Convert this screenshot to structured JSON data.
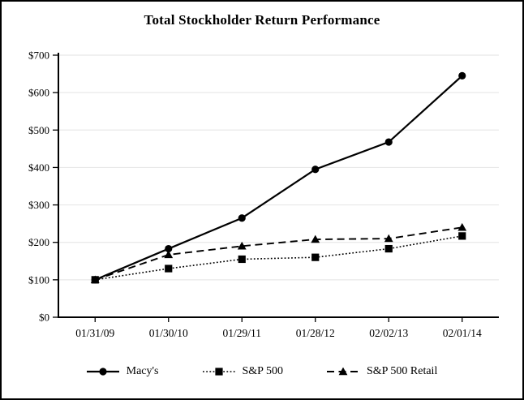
{
  "chart_data": {
    "type": "line",
    "title": "Total Stockholder Return Performance",
    "categories": [
      "01/31/09",
      "01/30/10",
      "01/29/11",
      "01/28/12",
      "02/02/13",
      "02/01/14"
    ],
    "series": [
      {
        "name": "Macy's",
        "marker": "circle",
        "line": "solid",
        "values": [
          100,
          183,
          265,
          395,
          468,
          645
        ]
      },
      {
        "name": "S&P 500",
        "marker": "square",
        "line": "dotted",
        "values": [
          100,
          130,
          155,
          160,
          183,
          217
        ]
      },
      {
        "name": "S&P 500 Retail",
        "marker": "triangle",
        "line": "dashed",
        "values": [
          100,
          167,
          190,
          208,
          210,
          240
        ]
      }
    ],
    "y_ticks": [
      {
        "value": 0,
        "label": "$0"
      },
      {
        "value": 100,
        "label": "$100"
      },
      {
        "value": 200,
        "label": "$200"
      },
      {
        "value": 300,
        "label": "$300"
      },
      {
        "value": 400,
        "label": "$400"
      },
      {
        "value": 500,
        "label": "$500"
      },
      {
        "value": 600,
        "label": "$600"
      },
      {
        "value": 700,
        "label": "$700"
      }
    ],
    "ylim": [
      0,
      700
    ],
    "grid": true,
    "legend_position": "bottom",
    "colors": {
      "line": "#000000",
      "grid": "#e8e8e8",
      "background": "#ffffff",
      "border": "#000000"
    }
  }
}
